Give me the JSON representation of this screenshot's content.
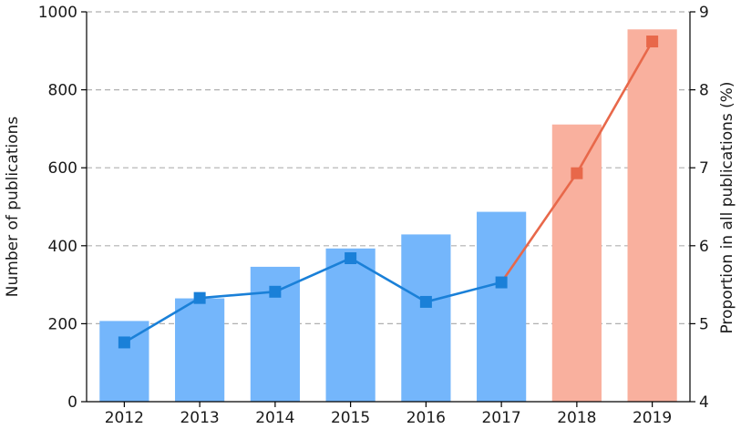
{
  "chart_data": {
    "type": "bar",
    "categories": [
      "2012",
      "2013",
      "2014",
      "2015",
      "2016",
      "2017",
      "2018",
      "2019"
    ],
    "series": [
      {
        "type": "bar",
        "axis": "left",
        "values": [
          207,
          265,
          346,
          393,
          429,
          487,
          711,
          955
        ],
        "colors": [
          "#74b6fb",
          "#74b6fb",
          "#74b6fb",
          "#74b6fb",
          "#74b6fb",
          "#74b6fb",
          "#f9b09e",
          "#f9b09e"
        ]
      },
      {
        "type": "line",
        "axis": "right",
        "marker": "square",
        "values": [
          4.76,
          5.33,
          5.41,
          5.84,
          5.28,
          5.53,
          6.93,
          8.62
        ],
        "colors": [
          "#1a80d8",
          "#1a80d8",
          "#1a80d8",
          "#1a80d8",
          "#1a80d8",
          "#1a80d8",
          "#e8684a",
          "#e8684a"
        ]
      }
    ],
    "xlabel": "",
    "ylabel": "Number of publications",
    "y2label": "Proportion in all publications (%)",
    "ylim": [
      0,
      1000
    ],
    "y2lim": [
      4,
      9
    ],
    "yticks": [
      "0",
      "200",
      "400",
      "600",
      "800",
      "1000"
    ],
    "y2ticks": [
      "4",
      "5",
      "6",
      "7",
      "8",
      "9"
    ],
    "grid": "horizontal dashed"
  }
}
